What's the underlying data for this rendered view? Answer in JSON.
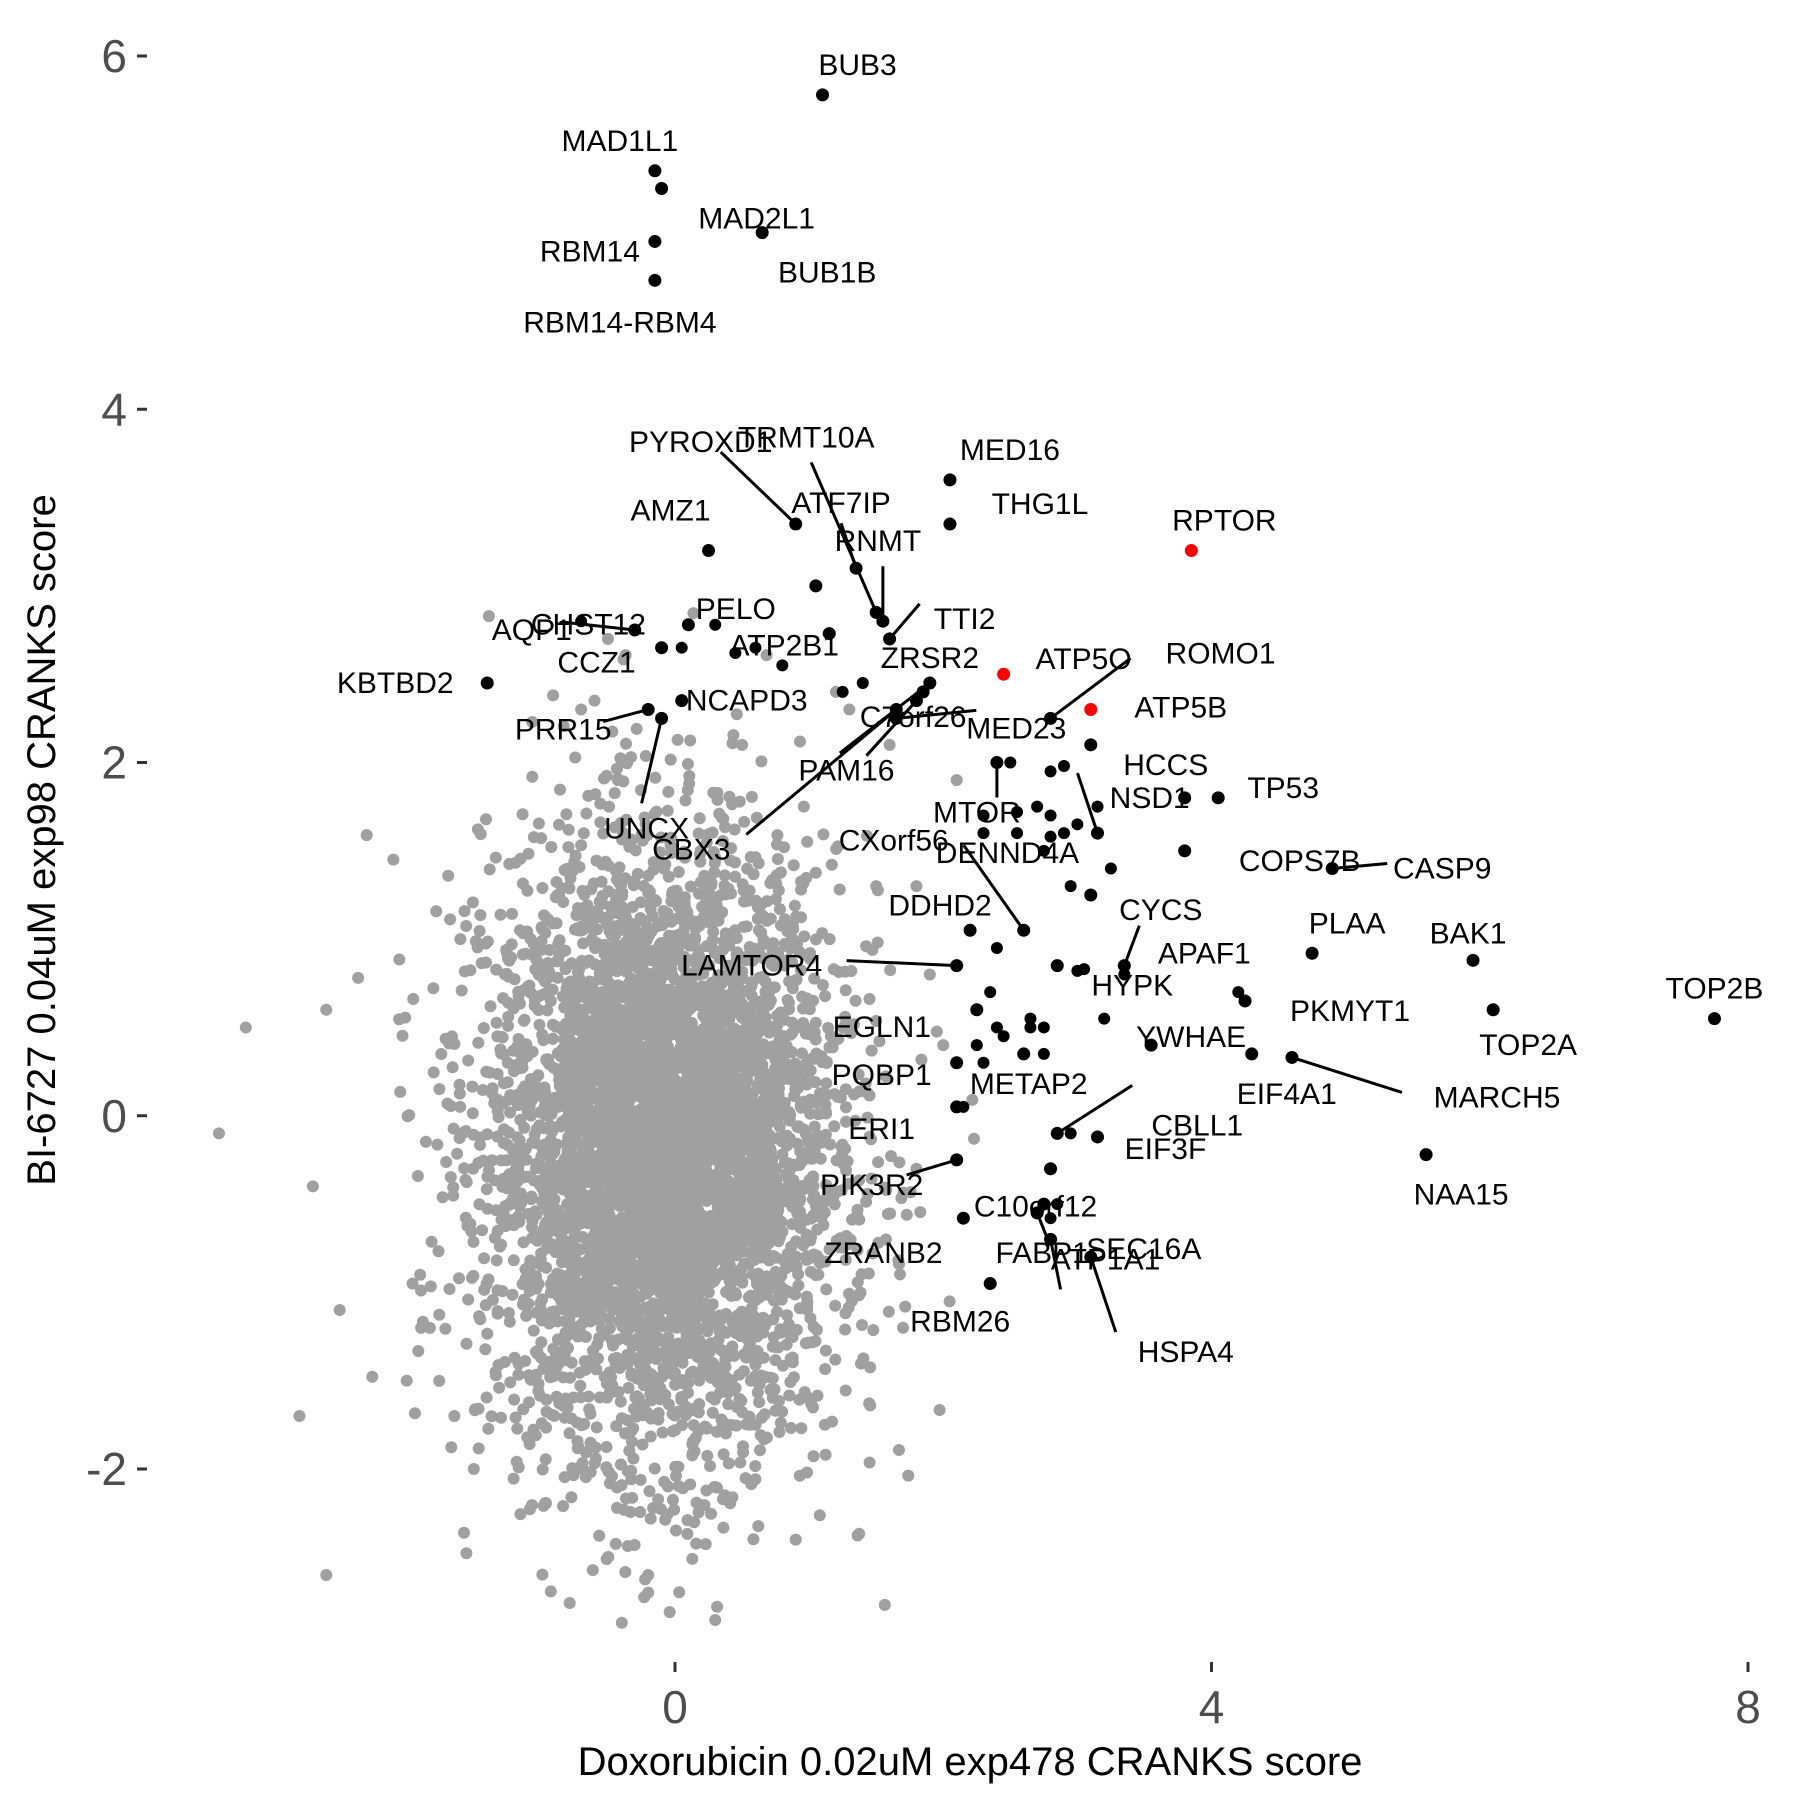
{
  "chart_data": {
    "type": "scatter",
    "title": "",
    "xlabel": "Doxorubicin 0.02uM exp478 CRANKS score",
    "ylabel": "BI-6727 0.04uM exp98 CRANKS score",
    "xlim": [
      -2.3,
      8.1
    ],
    "ylim": [
      -3.2,
      6.3
    ],
    "xticks": [
      {
        "value": 0,
        "label": "0"
      },
      {
        "value": 4,
        "label": "4"
      },
      {
        "value": 8,
        "label": "8"
      }
    ],
    "yticks": [
      {
        "value": -2,
        "label": "-2"
      },
      {
        "value": 0,
        "label": "0"
      },
      {
        "value": 2,
        "label": "2"
      },
      {
        "value": 4,
        "label": "4"
      },
      {
        "value": 6,
        "label": "6"
      }
    ],
    "grid": false,
    "legend": "none",
    "colors": {
      "background_points": "#a0a0a0",
      "highlight": "#000000",
      "mtor_complex": "#ff0000"
    },
    "background_cloud": {
      "description_count": 5000,
      "center": [
        -0.1,
        -0.2
      ],
      "sd": [
        0.65,
        0.85
      ],
      "outliers": [
        [
          -3.2,
          0.5
        ],
        [
          -3.4,
          -0.1
        ],
        [
          -2.6,
          0.6
        ],
        [
          -2.7,
          -0.4
        ],
        [
          -2.5,
          -1.1
        ],
        [
          -2.6,
          -2.6
        ],
        [
          -2.1,
          1.45
        ],
        [
          -2.0,
          -1.5
        ],
        [
          -1.9,
          -0.9
        ],
        [
          -1.6,
          1.0
        ],
        [
          -0.5,
          2.7
        ],
        [
          -0.6,
          2.35
        ],
        [
          -0.7,
          2.3
        ],
        [
          1.3,
          2.3
        ],
        [
          1.2,
          2.4
        ],
        [
          0.5,
          2.1
        ],
        [
          -0.2,
          -2.7
        ],
        [
          -0.2,
          -2.6
        ],
        [
          -0.1,
          1.1
        ],
        [
          1.5,
          1.3
        ],
        [
          1.8,
          -0.3
        ],
        [
          1.9,
          0.8
        ],
        [
          2.0,
          0.4
        ],
        [
          1.7,
          -1.2
        ],
        [
          -2.8,
          -1.7
        ],
        [
          -1.5,
          -2.0
        ],
        [
          0.9,
          -2.4
        ],
        [
          1.6,
          2.1
        ],
        [
          2.1,
          1.9
        ],
        [
          1.8,
          1.3
        ]
      ]
    },
    "labeled_points": [
      {
        "label": "BUB3",
        "x": 1.1,
        "y": 5.78,
        "color": "black"
      },
      {
        "label": "MAD1L1",
        "x": -0.15,
        "y": 5.35,
        "color": "black"
      },
      {
        "label": "MAD2L1",
        "x": -0.1,
        "y": 5.25,
        "color": "black"
      },
      {
        "label": "BUB1B",
        "x": 0.65,
        "y": 5.0,
        "color": "black"
      },
      {
        "label": "RBM14",
        "x": -0.15,
        "y": 4.95,
        "color": "black"
      },
      {
        "label": "RBM14-RBM4",
        "x": -0.15,
        "y": 4.73,
        "color": "black"
      },
      {
        "label": "PYROXD1",
        "x": 0.9,
        "y": 3.35,
        "color": "black"
      },
      {
        "label": "TRMT10A",
        "x": 1.5,
        "y": 2.85,
        "color": "black"
      },
      {
        "label": "ATF7IP",
        "x": 1.35,
        "y": 3.1,
        "color": "black"
      },
      {
        "label": "MED16",
        "x": 2.05,
        "y": 3.6,
        "color": "black"
      },
      {
        "label": "THG1L",
        "x": 2.05,
        "y": 3.35,
        "color": "black"
      },
      {
        "label": "RPTOR",
        "x": 3.85,
        "y": 3.2,
        "color": "red"
      },
      {
        "label": "AMZ1",
        "x": 0.25,
        "y": 3.2,
        "color": "black"
      },
      {
        "label": "RNMT",
        "x": 1.55,
        "y": 2.8,
        "color": "black"
      },
      {
        "label": "CHST12",
        "x": 0.1,
        "y": 2.78,
        "color": "black"
      },
      {
        "label": "PELO",
        "x": 1.05,
        "y": 3.0,
        "color": "black"
      },
      {
        "label": "TTI2",
        "x": 1.6,
        "y": 2.7,
        "color": "black"
      },
      {
        "label": "AQP1",
        "x": -0.3,
        "y": 2.75,
        "color": "black"
      },
      {
        "label": "ATP2B1",
        "x": 1.15,
        "y": 2.73,
        "color": "black"
      },
      {
        "label": "ATP5O",
        "x": 2.45,
        "y": 2.5,
        "color": "red"
      },
      {
        "label": "ROMO1",
        "x": 2.8,
        "y": 2.25,
        "color": "black"
      },
      {
        "label": "KBTBD2",
        "x": -1.4,
        "y": 2.45,
        "color": "black"
      },
      {
        "label": "CCZ1",
        "x": -0.1,
        "y": 2.65,
        "color": "black"
      },
      {
        "label": "ZRSR2",
        "x": 1.9,
        "y": 2.45,
        "color": "black"
      },
      {
        "label": "ATP5B",
        "x": 3.1,
        "y": 2.3,
        "color": "red"
      },
      {
        "label": "NCAPD3",
        "x": 0.05,
        "y": 2.35,
        "color": "black"
      },
      {
        "label": "PRR15",
        "x": -0.2,
        "y": 2.3,
        "color": "black"
      },
      {
        "label": "C7orf26",
        "x": 1.85,
        "y": 2.4,
        "color": "black"
      },
      {
        "label": "MED23",
        "x": 1.65,
        "y": 2.25,
        "color": "black"
      },
      {
        "label": "HCCS",
        "x": 3.1,
        "y": 2.1,
        "color": "black"
      },
      {
        "label": "UNCX",
        "x": -0.1,
        "y": 2.25,
        "color": "black"
      },
      {
        "label": "PAM16",
        "x": 1.8,
        "y": 2.35,
        "color": "black"
      },
      {
        "label": "MTOR",
        "x": 2.4,
        "y": 2.0,
        "color": "black"
      },
      {
        "label": "TP53",
        "x": 4.05,
        "y": 1.8,
        "color": "black"
      },
      {
        "label": "NSD1",
        "x": 3.8,
        "y": 1.8,
        "color": "black"
      },
      {
        "label": "COPS7B",
        "x": 3.8,
        "y": 1.5,
        "color": "black"
      },
      {
        "label": "CBX3",
        "x": 1.65,
        "y": 2.3,
        "color": "black"
      },
      {
        "label": "CXorf56",
        "x": 2.6,
        "y": 1.05,
        "color": "black"
      },
      {
        "label": "DENND4A",
        "x": 3.15,
        "y": 1.6,
        "color": "black"
      },
      {
        "label": "CASP9",
        "x": 4.9,
        "y": 1.4,
        "color": "black"
      },
      {
        "label": "CYCS",
        "x": 3.1,
        "y": 1.25,
        "color": "black"
      },
      {
        "label": "DDHD2",
        "x": 2.2,
        "y": 1.05,
        "color": "black"
      },
      {
        "label": "PLAA",
        "x": 4.75,
        "y": 0.92,
        "color": "black"
      },
      {
        "label": "BAK1",
        "x": 5.95,
        "y": 0.88,
        "color": "black"
      },
      {
        "label": "TOP2B",
        "x": 7.75,
        "y": 0.55,
        "color": "black"
      },
      {
        "label": "APAF1",
        "x": 3.35,
        "y": 0.85,
        "color": "black"
      },
      {
        "label": "LAMTOR4",
        "x": 2.1,
        "y": 0.85,
        "color": "black"
      },
      {
        "label": "HYPK",
        "x": 2.85,
        "y": 0.85,
        "color": "black"
      },
      {
        "label": "PKMYT1",
        "x": 4.25,
        "y": 0.65,
        "color": "black"
      },
      {
        "label": "TOP2A",
        "x": 6.1,
        "y": 0.6,
        "color": "black"
      },
      {
        "label": "EGLN1",
        "x": 2.25,
        "y": 0.6,
        "color": "black"
      },
      {
        "label": "YWHAE",
        "x": 3.55,
        "y": 0.4,
        "color": "black"
      },
      {
        "label": "EIF4A1",
        "x": 4.3,
        "y": 0.35,
        "color": "black"
      },
      {
        "label": "MARCH5",
        "x": 4.6,
        "y": 0.33,
        "color": "black"
      },
      {
        "label": "PQBP1",
        "x": 2.1,
        "y": 0.3,
        "color": "black"
      },
      {
        "label": "METAP2",
        "x": 2.6,
        "y": 0.35,
        "color": "black"
      },
      {
        "label": "CBLL1",
        "x": 2.85,
        "y": -0.1,
        "color": "black"
      },
      {
        "label": "ERI1",
        "x": 2.1,
        "y": 0.05,
        "color": "black"
      },
      {
        "label": "EIF3F",
        "x": 3.15,
        "y": -0.12,
        "color": "black"
      },
      {
        "label": "NAA15",
        "x": 5.6,
        "y": -0.22,
        "color": "black"
      },
      {
        "label": "PIK3R2",
        "x": 2.1,
        "y": -0.25,
        "color": "black"
      },
      {
        "label": "C10orf12",
        "x": 2.8,
        "y": -0.3,
        "color": "black"
      },
      {
        "label": "SEC16A",
        "x": 2.75,
        "y": -0.5,
        "color": "black"
      },
      {
        "label": "ZRANB2",
        "x": 2.15,
        "y": -0.58,
        "color": "black"
      },
      {
        "label": "FABP1",
        "x": 2.7,
        "y": -0.55,
        "color": "black"
      },
      {
        "label": "ATP1A1",
        "x": 2.8,
        "y": -0.7,
        "color": "black"
      },
      {
        "label": "RBM26",
        "x": 2.35,
        "y": -0.95,
        "color": "black"
      },
      {
        "label": "HSPA4",
        "x": 3.1,
        "y": -0.8,
        "color": "black"
      }
    ],
    "unlabeled_highlight_points": [
      [
        -0.7,
        2.8
      ],
      [
        0.3,
        2.78
      ],
      [
        0.05,
        2.65
      ],
      [
        0.45,
        2.62
      ],
      [
        0.6,
        2.65
      ],
      [
        0.8,
        2.55
      ],
      [
        1.25,
        2.4
      ],
      [
        1.4,
        2.45
      ],
      [
        2.5,
        2.0
      ],
      [
        2.8,
        1.95
      ],
      [
        2.9,
        1.98
      ],
      [
        3.15,
        1.75
      ],
      [
        2.3,
        1.7
      ],
      [
        2.55,
        1.72
      ],
      [
        2.7,
        1.75
      ],
      [
        2.8,
        1.7
      ],
      [
        2.3,
        1.6
      ],
      [
        2.55,
        1.6
      ],
      [
        2.8,
        1.58
      ],
      [
        2.9,
        1.6
      ],
      [
        3.0,
        1.65
      ],
      [
        2.75,
        1.5
      ],
      [
        2.95,
        1.3
      ],
      [
        2.4,
        0.95
      ],
      [
        3.0,
        0.82
      ],
      [
        3.05,
        0.83
      ],
      [
        3.35,
        0.8
      ],
      [
        2.35,
        0.7
      ],
      [
        2.65,
        0.5
      ],
      [
        2.65,
        0.55
      ],
      [
        2.75,
        0.5
      ],
      [
        2.4,
        0.5
      ],
      [
        2.45,
        0.45
      ],
      [
        2.3,
        0.3
      ],
      [
        2.75,
        0.35
      ],
      [
        3.2,
        0.55
      ],
      [
        4.2,
        0.7
      ],
      [
        2.15,
        0.05
      ],
      [
        2.25,
        0.4
      ],
      [
        2.95,
        -0.1
      ],
      [
        2.85,
        -0.5
      ],
      [
        2.8,
        -0.58
      ],
      [
        3.25,
        1.4
      ]
    ]
  }
}
